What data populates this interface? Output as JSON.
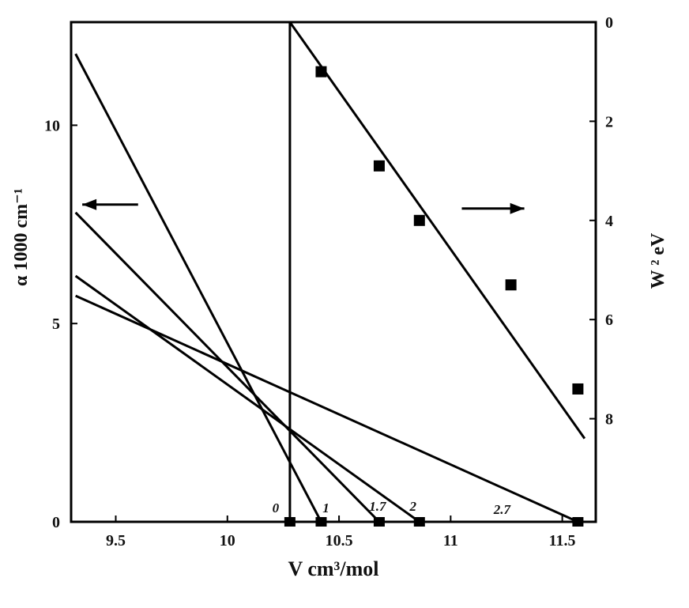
{
  "chart_data": {
    "type": "line",
    "xlabel": "V cm³/mol",
    "ylabel_left": "α 1000 cm⁻¹",
    "ylabel_right": "W ² eV",
    "xlim": [
      9.3,
      11.65
    ],
    "ylim_left": [
      0,
      12.6
    ],
    "ylim_right": [
      0,
      10.08
    ],
    "right_axis_inverted": true,
    "grid": false,
    "x_ticks": [
      {
        "value": 9.5,
        "label": "9.5"
      },
      {
        "value": 10,
        "label": "10"
      },
      {
        "value": 10.5,
        "label": "10.5"
      },
      {
        "value": 11,
        "label": "11"
      },
      {
        "value": 11.5,
        "label": "11.5"
      }
    ],
    "y_left_ticks": [
      {
        "value": 0,
        "label": "0"
      },
      {
        "value": 5,
        "label": "5"
      },
      {
        "value": 10,
        "label": "10"
      }
    ],
    "y_right_ticks": [
      {
        "value": 0,
        "label": "0"
      },
      {
        "value": 2,
        "label": "2"
      },
      {
        "value": 4,
        "label": "4"
      },
      {
        "value": 6,
        "label": "6"
      },
      {
        "value": 8,
        "label": "8"
      }
    ],
    "left_series": [
      {
        "label": "0",
        "points": [
          [
            10.28,
            0
          ],
          [
            10.28,
            12.6
          ]
        ]
      },
      {
        "label": "1",
        "points": [
          [
            9.32,
            11.8
          ],
          [
            10.42,
            0
          ]
        ]
      },
      {
        "label": "1.7",
        "points": [
          [
            9.32,
            7.8
          ],
          [
            10.68,
            0
          ]
        ]
      },
      {
        "label": "2",
        "points": [
          [
            9.32,
            6.2
          ],
          [
            10.86,
            0
          ]
        ]
      },
      {
        "label": "2.7",
        "points": [
          [
            9.32,
            5.7
          ],
          [
            11.57,
            0
          ]
        ]
      }
    ],
    "left_markers": [
      {
        "x": 10.28,
        "y": 0
      },
      {
        "x": 10.42,
        "y": 0
      },
      {
        "x": 10.68,
        "y": 0
      },
      {
        "x": 10.86,
        "y": 0
      },
      {
        "x": 11.57,
        "y": 0
      }
    ],
    "right_series": {
      "fit_line": [
        [
          10.28,
          0
        ],
        [
          11.6,
          8.4
        ]
      ],
      "points": [
        {
          "x": 10.42,
          "y": 1.0
        },
        {
          "x": 10.68,
          "y": 2.9
        },
        {
          "x": 10.86,
          "y": 4.0
        },
        {
          "x": 11.27,
          "y": 5.3
        },
        {
          "x": 11.57,
          "y": 7.4
        }
      ]
    },
    "arrows": [
      {
        "direction": "left",
        "x_from": 9.6,
        "x_to": 9.35,
        "y": 8.0
      },
      {
        "direction": "right",
        "x_from": 11.05,
        "x_to": 11.33,
        "y": 7.9
      }
    ]
  }
}
